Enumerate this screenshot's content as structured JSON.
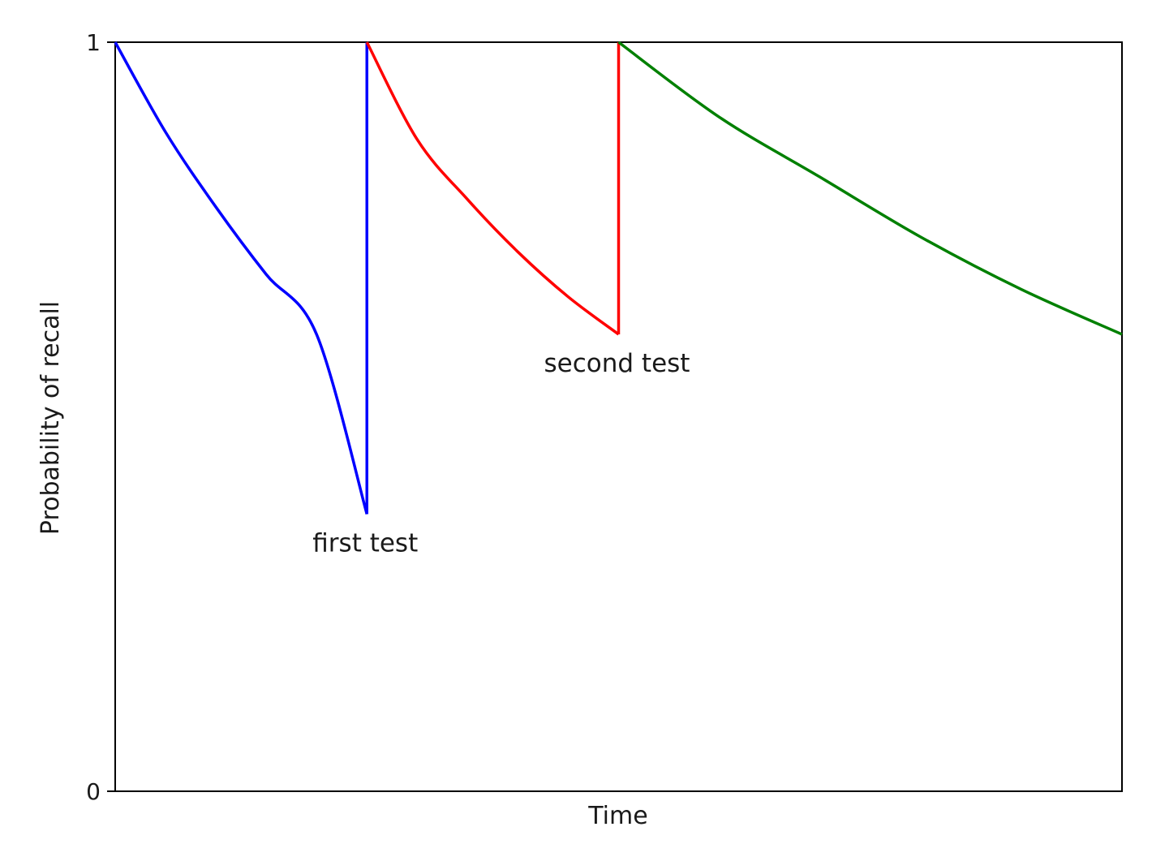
{
  "chart_data": {
    "type": "line",
    "xlabel": "Time",
    "ylabel": "Probability of recall",
    "ylim": [
      0,
      1
    ],
    "y_ticks": [
      "0",
      "1"
    ],
    "x_ticks": [],
    "grid": false,
    "series": [
      {
        "color": "#0000ff",
        "segment": "before first test",
        "x": [
          0.0,
          0.05,
          0.1,
          0.15,
          0.2,
          0.25
        ],
        "y": [
          1.0,
          0.88,
          0.78,
          0.69,
          0.61,
          0.37
        ]
      },
      {
        "color": "#0000ff",
        "segment": "jump at first test",
        "x": [
          0.25,
          0.25
        ],
        "y": [
          0.37,
          1.0
        ]
      },
      {
        "color": "#ff0000",
        "segment": "between tests",
        "x": [
          0.25,
          0.3,
          0.35,
          0.4,
          0.45,
          0.5
        ],
        "y": [
          1.0,
          0.87,
          0.79,
          0.72,
          0.66,
          0.61
        ]
      },
      {
        "color": "#ff0000",
        "segment": "jump at second test",
        "x": [
          0.5,
          0.5
        ],
        "y": [
          0.61,
          1.0
        ]
      },
      {
        "color": "#008000",
        "segment": "after second test",
        "x": [
          0.5,
          0.6,
          0.7,
          0.8,
          0.9,
          1.0
        ],
        "y": [
          1.0,
          0.9,
          0.82,
          0.74,
          0.67,
          0.61
        ]
      }
    ],
    "annotations": [
      {
        "text": "first test",
        "x": 0.25,
        "y": 0.37
      },
      {
        "text": "second test",
        "x": 0.5,
        "y": 0.61
      }
    ]
  }
}
